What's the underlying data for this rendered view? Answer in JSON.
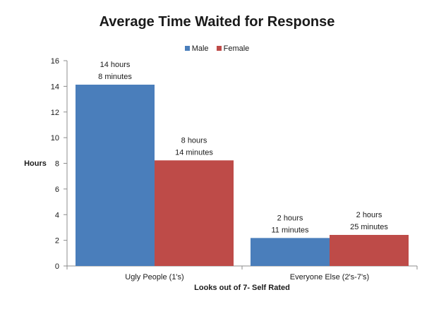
{
  "chart_data": {
    "type": "bar",
    "title": "Average Time Waited for Response",
    "xlabel": "Looks out of 7- Self Rated",
    "ylabel": "Hours",
    "ylim": [
      0,
      16
    ],
    "yticks": [
      0,
      2,
      4,
      6,
      8,
      10,
      12,
      14,
      16
    ],
    "grid": false,
    "legend_position": "top",
    "categories": [
      "Ugly People (1's)",
      "Everyone Else (2's-7's)"
    ],
    "series": [
      {
        "name": "Male",
        "color": "#4a7ebb",
        "values": [
          14.13,
          2.18
        ],
        "data_labels": [
          [
            "14 hours",
            "8 minutes"
          ],
          [
            "2 hours",
            "11 minutes"
          ]
        ]
      },
      {
        "name": "Female",
        "color": "#be4b48",
        "values": [
          8.23,
          2.42
        ],
        "data_labels": [
          [
            "8 hours",
            "14 minutes"
          ],
          [
            "2 hours",
            "25 minutes"
          ]
        ]
      }
    ]
  }
}
